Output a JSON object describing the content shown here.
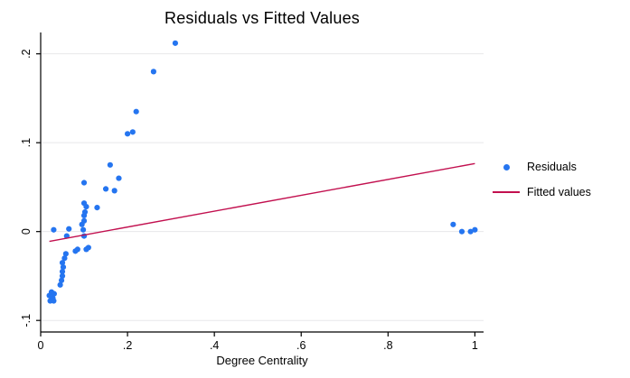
{
  "title": "Residuals vs Fitted Values",
  "chart_data": {
    "type": "scatter",
    "title": "Residuals vs Fitted Values",
    "xlabel": "Degree Centrality",
    "ylabel": "",
    "xlim": [
      0,
      1.02
    ],
    "ylim": [
      -0.113,
      0.222
    ],
    "x_ticks": [
      0,
      0.2,
      0.4,
      0.6,
      0.8,
      1
    ],
    "x_tick_labels": [
      "0",
      ".2",
      ".4",
      ".6",
      ".8",
      "1"
    ],
    "y_ticks": [
      -0.1,
      0,
      0.1,
      0.2
    ],
    "y_tick_labels": [
      "-.1",
      "0",
      ".1",
      ".2"
    ],
    "grid": "horizontal",
    "grid_color": "#e7e7ea",
    "axis_color": "#000000",
    "legend_position": "right",
    "series": [
      {
        "name": "Residuals",
        "type": "scatter",
        "color": "#2575f0",
        "points": [
          [
            0.02,
            -0.072
          ],
          [
            0.022,
            -0.078
          ],
          [
            0.025,
            -0.068
          ],
          [
            0.028,
            -0.075
          ],
          [
            0.03,
            -0.078
          ],
          [
            0.031,
            -0.07
          ],
          [
            0.03,
            0.002
          ],
          [
            0.045,
            -0.06
          ],
          [
            0.048,
            -0.055
          ],
          [
            0.05,
            -0.05
          ],
          [
            0.05,
            -0.045
          ],
          [
            0.052,
            -0.04
          ],
          [
            0.05,
            -0.035
          ],
          [
            0.055,
            -0.03
          ],
          [
            0.058,
            -0.025
          ],
          [
            0.06,
            -0.005
          ],
          [
            0.065,
            0.003
          ],
          [
            0.08,
            -0.022
          ],
          [
            0.085,
            -0.02
          ],
          [
            0.095,
            0.008
          ],
          [
            0.1,
            0.012
          ],
          [
            0.1,
            0.018
          ],
          [
            0.102,
            0.022
          ],
          [
            0.105,
            0.028
          ],
          [
            0.1,
            0.032
          ],
          [
            0.098,
            0.002
          ],
          [
            0.1,
            -0.005
          ],
          [
            0.105,
            -0.02
          ],
          [
            0.11,
            -0.018
          ],
          [
            0.1,
            0.055
          ],
          [
            0.13,
            0.027
          ],
          [
            0.15,
            0.048
          ],
          [
            0.16,
            0.075
          ],
          [
            0.17,
            0.046
          ],
          [
            0.18,
            0.06
          ],
          [
            0.2,
            0.11
          ],
          [
            0.212,
            0.112
          ],
          [
            0.22,
            0.135
          ],
          [
            0.26,
            0.18
          ],
          [
            0.31,
            0.212
          ],
          [
            0.95,
            0.008
          ],
          [
            0.97,
            0.0
          ],
          [
            0.99,
            0.0
          ],
          [
            1.0,
            0.002
          ]
        ]
      },
      {
        "name": "Fitted values",
        "type": "line",
        "color": "#c2104f",
        "points": [
          [
            0.02,
            -0.011
          ],
          [
            1.0,
            0.0765
          ]
        ]
      }
    ]
  }
}
